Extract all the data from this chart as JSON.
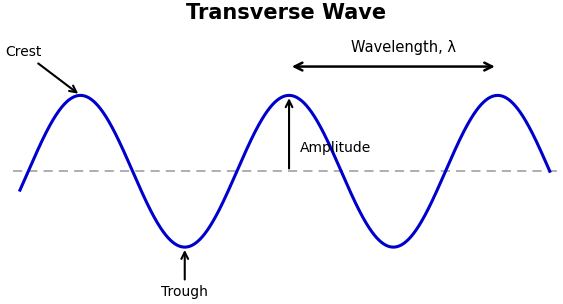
{
  "title": "Transverse Wave",
  "title_fontsize": 15,
  "title_fontweight": "bold",
  "wave_color": "#0000CC",
  "wave_linewidth": 2.2,
  "midline_color": "#999999",
  "midline_linestyle": "--",
  "background_color": "#ffffff",
  "amplitude": 1.0,
  "label_crest": "Crest",
  "label_trough": "Trough",
  "label_amplitude": "Amplitude",
  "label_wavelength": "Wavelength, λ",
  "label_fontsize": 10,
  "arrow_color": "#000000",
  "x_min": -0.15,
  "x_max": 5.1,
  "y_min": -1.65,
  "y_max": 1.85
}
